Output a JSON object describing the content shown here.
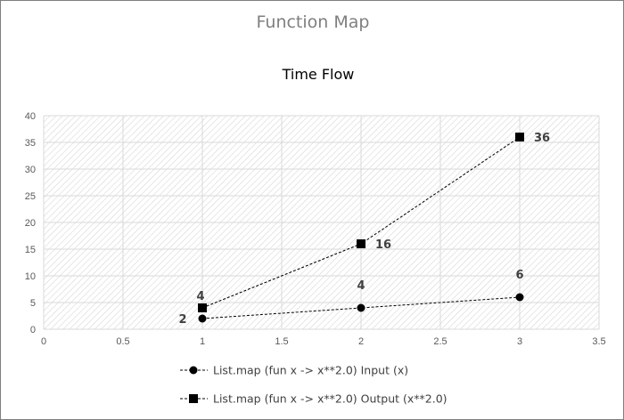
{
  "chart_data": {
    "type": "scatter",
    "title": "Function Map",
    "subtitle": "Time Flow",
    "xlabel": "",
    "ylabel": "",
    "xlim": [
      0,
      3.5
    ],
    "ylim": [
      0,
      40
    ],
    "x_ticks": [
      "0",
      "0.5",
      "1",
      "1.5",
      "2",
      "2.5",
      "3",
      "3.5"
    ],
    "y_ticks": [
      "0",
      "5",
      "10",
      "15",
      "20",
      "25",
      "30",
      "35",
      "40"
    ],
    "grid": true,
    "legend_position": "bottom",
    "series": [
      {
        "name": "List.map (fun x -> x**2.0) Input (x)",
        "marker": "circle",
        "line": "dashed",
        "color": "#000000",
        "points": [
          {
            "x": 1,
            "y": 2,
            "label": "2"
          },
          {
            "x": 2,
            "y": 4,
            "label": "4"
          },
          {
            "x": 3,
            "y": 6,
            "label": "6"
          }
        ]
      },
      {
        "name": "List.map (fun x -> x**2.0) Output (x**2.0)",
        "marker": "square",
        "line": "dashed",
        "color": "#000000",
        "points": [
          {
            "x": 1,
            "y": 4,
            "label": "4"
          },
          {
            "x": 2,
            "y": 16,
            "label": "16"
          },
          {
            "x": 3,
            "y": 36,
            "label": "36"
          }
        ]
      }
    ]
  }
}
